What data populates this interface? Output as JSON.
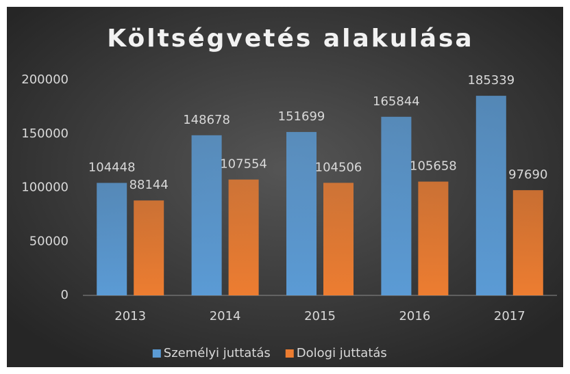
{
  "chart_data": {
    "type": "bar",
    "title": "Költségvetés alakulása",
    "categories": [
      "2013",
      "2014",
      "2015",
      "2016",
      "2017"
    ],
    "series": [
      {
        "name": "Személyi juttatás",
        "color": "#5b9bd5",
        "values": [
          104448,
          148678,
          151699,
          165844,
          185339
        ]
      },
      {
        "name": "Dologi juttatás",
        "color": "#ed7d31",
        "values": [
          88144,
          107554,
          104506,
          105658,
          97690
        ]
      }
    ],
    "ylim": [
      0,
      200000
    ],
    "yticks": [
      0,
      50000,
      100000,
      150000,
      200000
    ],
    "grid": false,
    "legend": "bottom"
  }
}
